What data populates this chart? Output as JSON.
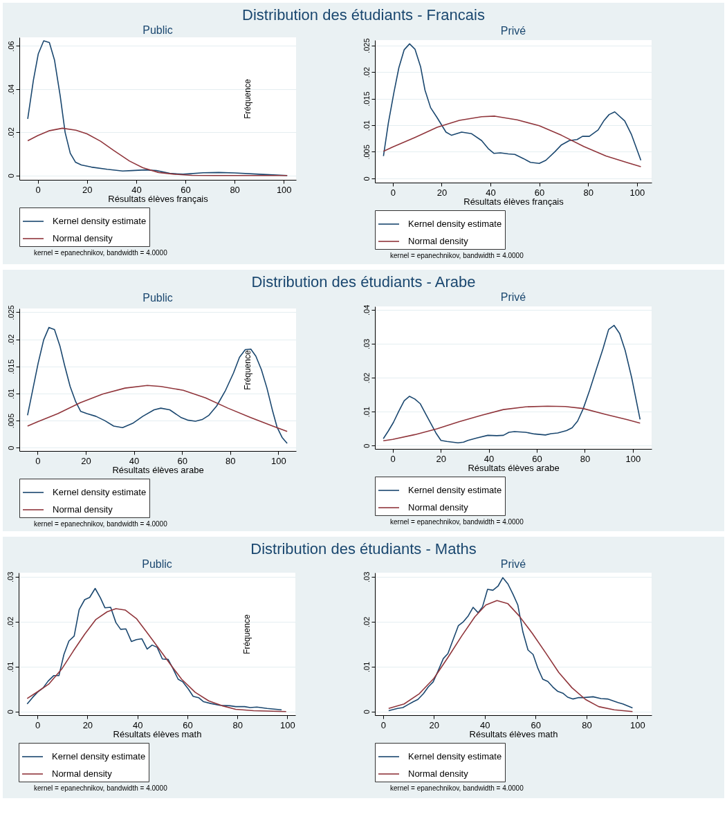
{
  "chart_data": [
    {
      "type": "line",
      "title": "Distribution des étudiants - Francais",
      "subtitle": "Public",
      "xlabel": "Résultats élèves français",
      "ylabel": "Fréquence",
      "xlim": [
        -7.5,
        105
      ],
      "ylim": [
        -0.002,
        0.064
      ],
      "xticks": [
        0,
        20,
        40,
        60,
        80,
        100
      ],
      "yticks": [
        {
          "value": 0,
          "label": "0"
        },
        {
          "value": 0.02,
          "label": ".02"
        },
        {
          "value": 0.04,
          "label": ".04"
        },
        {
          "value": 0.06,
          "label": ".06"
        }
      ],
      "grid": "y",
      "legend": "bottom",
      "annotations": [
        "kernel = epanechnikov, bandwidth = 4.0000"
      ],
      "series": [
        {
          "name": "Kernel density estimate",
          "color": "#1a476f",
          "x": [
            -4.1,
            -1.8,
            0.2,
            2.4,
            4.7,
            6.8,
            9.1,
            11.1,
            13.2,
            15.3,
            17.7,
            21.8,
            28.2,
            34.5,
            38.2,
            43.6,
            48.2,
            53.6,
            59.1,
            67.3,
            73.6,
            80,
            90,
            101.4
          ],
          "values": [
            0.0262,
            0.0441,
            0.0564,
            0.0624,
            0.0616,
            0.0534,
            0.0369,
            0.02,
            0.0103,
            0.0062,
            0.0049,
            0.0039,
            0.0029,
            0.0021,
            0.0023,
            0.0026,
            0.0023,
            0.001,
            0.0006,
            0.0013,
            0.0014,
            0.0012,
            0.0006,
            0
          ]
        },
        {
          "name": "Normal density",
          "color": "#90353b",
          "x": [
            -4.1,
            0,
            4.5,
            10,
            15.5,
            20,
            25.5,
            30.9,
            37.3,
            42.7,
            49.1,
            55.5,
            62.7,
            71.8,
            101.4
          ],
          "values": [
            0.0161,
            0.0185,
            0.0207,
            0.0219,
            0.021,
            0.0193,
            0.0159,
            0.0116,
            0.0067,
            0.0036,
            0.0014,
            0.0006,
            0.0001,
            0,
            0
          ]
        }
      ]
    },
    {
      "type": "line",
      "subtitle": "Privé",
      "xlabel": "Résultats élèves français",
      "xlim": [
        -7.3,
        106
      ],
      "ylim": [
        -0.0008,
        0.026
      ],
      "xticks": [
        0,
        20,
        40,
        60,
        80,
        100
      ],
      "yticks": [
        {
          "value": 0,
          "label": "0"
        },
        {
          "value": 0.005,
          "label": ".005"
        },
        {
          "value": 0.01,
          "label": ".01"
        },
        {
          "value": 0.015,
          "label": ".015"
        },
        {
          "value": 0.02,
          "label": ".02"
        },
        {
          "value": 0.025,
          "label": ".025"
        }
      ],
      "grid": "y",
      "legend": "bottom",
      "annotations": [
        "kernel = epanechnikov, bandwidth = 4.0000"
      ],
      "series": [
        {
          "name": "Kernel density estimate",
          "color": "#1a476f",
          "x": [
            -3.8,
            -1.8,
            0.5,
            2.5,
            4.7,
            6.9,
            9.1,
            11.4,
            13.2,
            15.5,
            18.2,
            21.8,
            24.1,
            28.2,
            32.3,
            36.4,
            39.1,
            41.4,
            44.1,
            47.3,
            50,
            53.6,
            56.4,
            60,
            62.7,
            66.4,
            69.1,
            72.3,
            75.5,
            77.7,
            80.5,
            84.1,
            86.4,
            88.6,
            90.9,
            95,
            97.7,
            101.6
          ],
          "values": [
            0.0042,
            0.0104,
            0.0162,
            0.0208,
            0.0242,
            0.0253,
            0.0243,
            0.021,
            0.0166,
            0.0133,
            0.0114,
            0.0087,
            0.0081,
            0.0087,
            0.0084,
            0.0071,
            0.0056,
            0.0047,
            0.0048,
            0.0046,
            0.0045,
            0.0037,
            0.003,
            0.0028,
            0.0034,
            0.005,
            0.0063,
            0.0071,
            0.0073,
            0.0079,
            0.0079,
            0.0091,
            0.0108,
            0.012,
            0.0125,
            0.0108,
            0.0083,
            0.0034
          ]
        },
        {
          "name": "Normal density",
          "color": "#90353b",
          "x": [
            -3.8,
            0,
            9.1,
            18.2,
            27.3,
            36.4,
            41.8,
            50.9,
            60,
            69.1,
            78.2,
            87.3,
            96.4,
            101.6
          ],
          "values": [
            0.0051,
            0.0059,
            0.0077,
            0.0096,
            0.0109,
            0.0116,
            0.0117,
            0.011,
            0.0099,
            0.0081,
            0.006,
            0.0042,
            0.0029,
            0.0022
          ]
        }
      ]
    },
    {
      "type": "line",
      "title": "Distribution des étudiants - Arabe",
      "subtitle": "Public",
      "xlabel": "Résultats élèves arabe",
      "ylabel": "Fréquence",
      "xlim": [
        -7.6,
        107.4
      ],
      "ylim": [
        -0.0006,
        0.0257
      ],
      "xticks": [
        0,
        20,
        40,
        60,
        80,
        100
      ],
      "yticks": [
        {
          "value": 0,
          "label": "0"
        },
        {
          "value": 0.005,
          "label": ".005"
        },
        {
          "value": 0.01,
          "label": ".01"
        },
        {
          "value": 0.015,
          "label": ".015"
        },
        {
          "value": 0.02,
          "label": ".02"
        },
        {
          "value": 0.025,
          "label": ".025"
        }
      ],
      "grid": "y",
      "legend": "bottom",
      "annotations": [
        "kernel = epanechnikov, bandwidth = 4.0000"
      ],
      "series": [
        {
          "name": "Kernel density estimate",
          "color": "#1a476f",
          "x": [
            -4.2,
            -1.9,
            0.2,
            2.5,
            4.7,
            7,
            9.3,
            11.2,
            13.5,
            15.8,
            17.9,
            20.5,
            24.2,
            27.9,
            31.6,
            35.3,
            39.5,
            43.7,
            48.4,
            51.2,
            54.9,
            59.5,
            62.3,
            65.6,
            68.4,
            71.2,
            74.4,
            78.1,
            81.4,
            83.9,
            86.3,
            88.6,
            90.7,
            93,
            95.3,
            97.7,
            99.5,
            101.6,
            103.7
          ],
          "values": [
            0.006,
            0.011,
            0.0156,
            0.0199,
            0.0222,
            0.0218,
            0.0187,
            0.0152,
            0.0113,
            0.0085,
            0.0067,
            0.0063,
            0.0058,
            0.005,
            0.004,
            0.0037,
            0.0045,
            0.0058,
            0.007,
            0.0073,
            0.007,
            0.0056,
            0.0051,
            0.0049,
            0.0052,
            0.006,
            0.0077,
            0.0106,
            0.0138,
            0.0167,
            0.0181,
            0.0182,
            0.0169,
            0.0144,
            0.011,
            0.0067,
            0.0038,
            0.0019,
            0.0008
          ]
        },
        {
          "name": "Normal density",
          "color": "#90353b",
          "x": [
            -4.2,
            0,
            8.4,
            17.7,
            27,
            36.3,
            45.6,
            51.2,
            60.5,
            69.8,
            79.1,
            88.4,
            97.7,
            103.7
          ],
          "values": [
            0.004,
            0.0048,
            0.0063,
            0.0083,
            0.0099,
            0.011,
            0.0115,
            0.0113,
            0.0106,
            0.0092,
            0.0073,
            0.0056,
            0.004,
            0.003
          ]
        }
      ]
    },
    {
      "type": "line",
      "subtitle": "Privé",
      "xlabel": "Résultats élèves arabe",
      "xlim": [
        -7.4,
        107.8
      ],
      "ylim": [
        -0.001,
        0.041
      ],
      "xticks": [
        0,
        20,
        40,
        60,
        80,
        100
      ],
      "yticks": [
        {
          "value": 0,
          "label": "0"
        },
        {
          "value": 0.01,
          "label": ".01"
        },
        {
          "value": 0.02,
          "label": ".02"
        },
        {
          "value": 0.03,
          "label": ".03"
        },
        {
          "value": 0.04,
          "label": ".04"
        }
      ],
      "grid": "y",
      "legend": "bottom",
      "annotations": [
        "kernel = epanechnikov, bandwidth = 4.0000"
      ],
      "series": [
        {
          "name": "Kernel density estimate",
          "color": "#1a476f",
          "x": [
            -3.9,
            -1.8,
            0.3,
            2.6,
            4.8,
            7,
            9.2,
            11.5,
            13.8,
            16.1,
            18,
            20.1,
            22.6,
            24.9,
            27.2,
            29.5,
            31.3,
            35,
            39.6,
            43.3,
            46.1,
            48.4,
            50.7,
            55.3,
            59,
            63.6,
            65.9,
            68.7,
            72.4,
            74.7,
            77,
            79.3,
            82,
            84.8,
            87.6,
            89.9,
            92.2,
            94.5,
            96.8,
            99.5,
            103
          ],
          "values": [
            0.002,
            0.0043,
            0.0068,
            0.0102,
            0.0132,
            0.0145,
            0.0137,
            0.0123,
            0.0092,
            0.0062,
            0.0037,
            0.0015,
            0.0012,
            0.001,
            0.0008,
            0.001,
            0.0015,
            0.0022,
            0.003,
            0.0029,
            0.003,
            0.0039,
            0.0041,
            0.0039,
            0.0034,
            0.0031,
            0.0035,
            0.0037,
            0.0044,
            0.0052,
            0.0072,
            0.0108,
            0.0163,
            0.0225,
            0.0286,
            0.0342,
            0.0354,
            0.033,
            0.028,
            0.02,
            0.0077
          ]
        },
        {
          "name": "Normal density",
          "color": "#90353b",
          "x": [
            -3.9,
            0,
            9.2,
            18.4,
            27.6,
            36.9,
            46.1,
            55.3,
            64.5,
            71.9,
            79.3,
            88.5,
            97.7,
            103
          ],
          "values": [
            0.0014,
            0.0018,
            0.0032,
            0.0049,
            0.007,
            0.0089,
            0.0106,
            0.0114,
            0.0116,
            0.0115,
            0.0109,
            0.0092,
            0.0076,
            0.0066
          ]
        }
      ]
    },
    {
      "type": "line",
      "title": "Distribution des étudiants - Maths",
      "subtitle": "Public",
      "xlabel": "Résultats élèves math",
      "ylabel": "Fréquence",
      "xlim": [
        -7.5,
        103.2
      ],
      "ylim": [
        -0.0008,
        0.0309
      ],
      "xticks": [
        0,
        20,
        40,
        60,
        80,
        100
      ],
      "yticks": [
        {
          "value": 0,
          "label": "0"
        },
        {
          "value": 0.01,
          "label": ".01"
        },
        {
          "value": 0.02,
          "label": ".02"
        },
        {
          "value": 0.03,
          "label": ".03"
        }
      ],
      "grid": "y",
      "legend": "bottom",
      "annotations": [
        "kernel = epanechnikov, bandwidth = 4.0000"
      ],
      "series": [
        {
          "name": "Kernel density estimate",
          "color": "#1a476f",
          "x": [
            -4.1,
            -2,
            0,
            2.3,
            4.3,
            6.5,
            8.6,
            10.6,
            12.6,
            14.7,
            16.7,
            18.9,
            20.9,
            23.1,
            25.2,
            27,
            29.3,
            31.4,
            33.3,
            35.4,
            37.6,
            39.6,
            41.8,
            43.9,
            45.9,
            47.9,
            50,
            52.3,
            54.2,
            56.3,
            58.2,
            60.4,
            62.3,
            64.5,
            66.5,
            69.4,
            73,
            77,
            79.3,
            82.9,
            85.1,
            87.8,
            91.9,
            97.7
          ],
          "values": [
            0.0017,
            0.0031,
            0.0043,
            0.0053,
            0.0068,
            0.008,
            0.008,
            0.0127,
            0.0157,
            0.0168,
            0.0227,
            0.0249,
            0.0254,
            0.0274,
            0.0253,
            0.0231,
            0.0232,
            0.0198,
            0.0183,
            0.0184,
            0.0156,
            0.016,
            0.0162,
            0.0139,
            0.0148,
            0.0143,
            0.0117,
            0.0116,
            0.0096,
            0.0072,
            0.0066,
            0.005,
            0.0034,
            0.0031,
            0.0022,
            0.0018,
            0.0014,
            0.0013,
            0.0011,
            0.0011,
            0.0009,
            0.001,
            0.0007,
            0.0004
          ]
        },
        {
          "name": "Normal density",
          "color": "#90353b",
          "x": [
            -4.1,
            0,
            4.5,
            9.9,
            14.4,
            18.9,
            23.4,
            27.9,
            31.4,
            35.1,
            39.6,
            44.1,
            48.6,
            53.2,
            57.7,
            63.1,
            68.5,
            73.9,
            79.3,
            86.5,
            99.5
          ],
          "values": [
            0.0029,
            0.0044,
            0.0061,
            0.0096,
            0.0135,
            0.0172,
            0.0205,
            0.0222,
            0.0229,
            0.0226,
            0.0207,
            0.0174,
            0.014,
            0.0105,
            0.0072,
            0.0043,
            0.0024,
            0.0013,
            0.0005,
            0.0002,
            0
          ]
        }
      ]
    },
    {
      "type": "line",
      "subtitle": "Privé",
      "xlabel": "Résultats élèves math",
      "xlim": [
        -3.2,
        105.6
      ],
      "ylim": [
        -0.0008,
        0.0309
      ],
      "xticks": [
        0,
        20,
        40,
        60,
        80,
        100
      ],
      "yticks": [
        {
          "value": 0,
          "label": "0"
        },
        {
          "value": 0.01,
          "label": ".01"
        },
        {
          "value": 0.02,
          "label": ".02"
        },
        {
          "value": 0.03,
          "label": ".03"
        }
      ],
      "grid": "y",
      "legend": "bottom",
      "annotations": [
        "kernel = epanechnikov, bandwidth = 4.0000"
      ],
      "series": [
        {
          "name": "Kernel density estimate",
          "color": "#1a476f",
          "x": [
            2.2,
            5.7,
            7.8,
            10,
            11.9,
            13.7,
            15.9,
            17.8,
            19.7,
            21.6,
            23.7,
            25.5,
            27.6,
            29.6,
            31.6,
            33.5,
            35.4,
            37.4,
            39.1,
            41.1,
            43.2,
            45.2,
            47.1,
            49.1,
            51.1,
            53,
            55,
            57,
            59,
            60.9,
            62.8,
            64.8,
            66.7,
            68.7,
            70.7,
            72.6,
            74.6,
            76.7,
            78.7,
            82.6,
            85.7,
            88.3,
            92.4,
            94.3,
            98.1
          ],
          "values": [
            0.0002,
            0.0007,
            0.0009,
            0.0016,
            0.0022,
            0.0027,
            0.004,
            0.0055,
            0.0066,
            0.009,
            0.0118,
            0.0129,
            0.0161,
            0.0191,
            0.02,
            0.0213,
            0.0232,
            0.022,
            0.0233,
            0.0272,
            0.027,
            0.0279,
            0.0298,
            0.0284,
            0.0261,
            0.0237,
            0.0177,
            0.0137,
            0.0127,
            0.0096,
            0.0072,
            0.0067,
            0.0055,
            0.0045,
            0.0041,
            0.0032,
            0.0028,
            0.0031,
            0.0031,
            0.0033,
            0.0029,
            0.0028,
            0.002,
            0.0017,
            0.0008
          ]
        },
        {
          "name": "Normal density",
          "color": "#90353b",
          "x": [
            2.2,
            8.3,
            14.3,
            20,
            25.7,
            30.9,
            36.1,
            40.4,
            44.8,
            49.1,
            53.5,
            58.7,
            63.9,
            69.1,
            74.3,
            79.6,
            84.8,
            90.9,
            98.1
          ],
          "values": [
            0.0007,
            0.0017,
            0.004,
            0.0074,
            0.0122,
            0.0168,
            0.0211,
            0.0237,
            0.0247,
            0.024,
            0.0213,
            0.0174,
            0.0131,
            0.0087,
            0.0053,
            0.0027,
            0.0011,
            0.0004,
            0
          ]
        }
      ]
    }
  ]
}
